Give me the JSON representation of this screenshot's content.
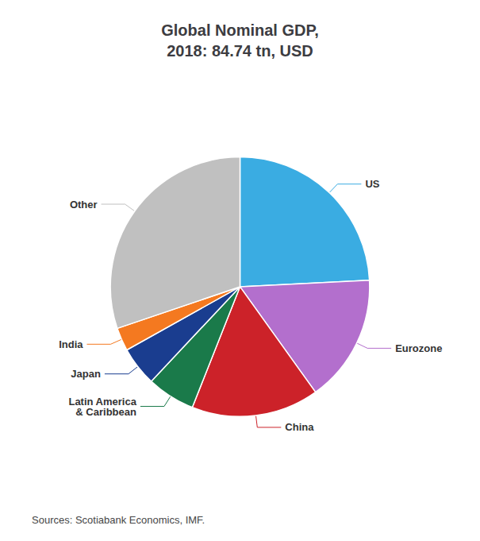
{
  "chart_data": {
    "type": "pie",
    "title": "Global Nominal GDP,\n2018: 84.74 tn, USD",
    "categories": [
      "US",
      "Eurozone",
      "China",
      "Latin America\n& Caribbean",
      "Japan",
      "India",
      "Other"
    ],
    "values": [
      24.2,
      15.9,
      15.9,
      6.0,
      4.9,
      2.9,
      30.2
    ],
    "colors": [
      "#3aace2",
      "#b36fcd",
      "#cc2229",
      "#1a7a4a",
      "#1a3d8f",
      "#f47920",
      "#c0c0c0"
    ],
    "annotation": "Sources: Scotiabank Economics, IMF."
  }
}
